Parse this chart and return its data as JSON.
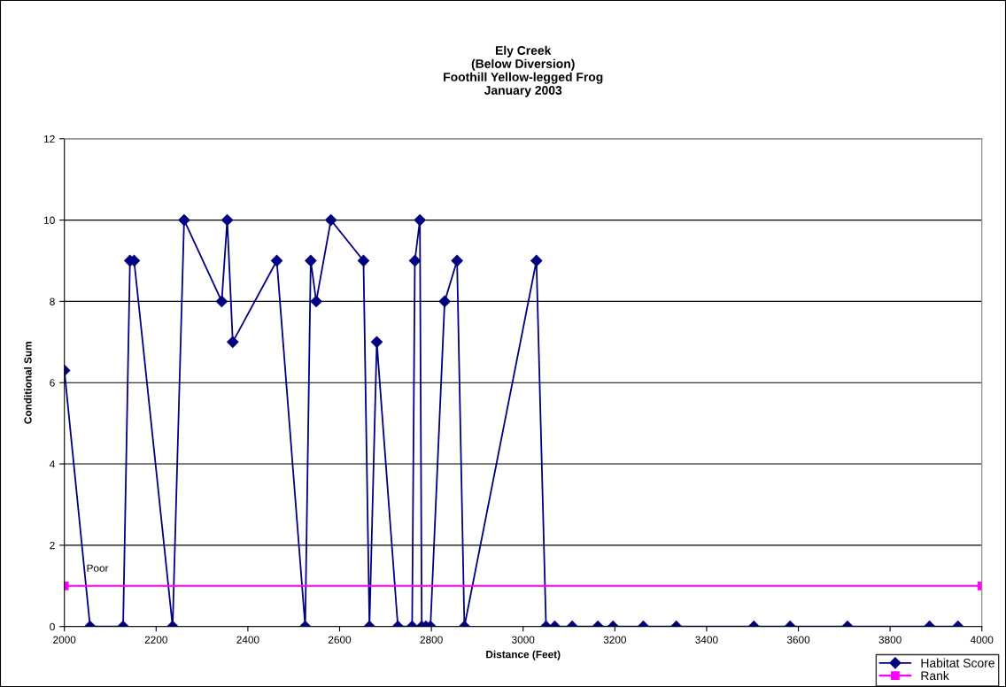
{
  "chart_data": {
    "type": "line",
    "title": "Ely Creek\n(Below Diversion)\nFoothill Yellow-legged Frog\nJanuary 2003",
    "xlabel": "Distance (Feet)",
    "ylabel": "Conditional Sum",
    "xlim": [
      2000,
      4000
    ],
    "xticks": [
      2000,
      2200,
      2400,
      2600,
      2800,
      3000,
      3200,
      3400,
      3600,
      3800,
      4000
    ],
    "ylim": [
      0,
      12
    ],
    "yticks": [
      0,
      2,
      4,
      6,
      8,
      10,
      12
    ],
    "grid": "y",
    "legend": "bottom right",
    "line_style": "solid",
    "annotations": [
      "Poor"
    ],
    "series": [
      {
        "name": "Habitat Score",
        "color": "#000080",
        "marker": "diamond",
        "x": [
          2000,
          2056,
          2128,
          2143,
          2152,
          2236,
          2261,
          2343,
          2355,
          2367,
          2463,
          2525,
          2537,
          2549,
          2581,
          2652,
          2665,
          2681,
          2727,
          2758,
          2764,
          2775,
          2779,
          2788,
          2798,
          2829,
          2856,
          2872,
          3029,
          3050,
          3069,
          3107,
          3163,
          3196,
          3262,
          3334,
          3503,
          3582,
          3707,
          3886,
          3948
        ],
        "values": [
          6.3,
          0,
          0,
          9,
          9,
          0,
          10,
          8,
          10,
          7,
          9,
          0,
          9,
          8,
          10,
          9,
          0,
          7,
          0,
          0,
          9,
          10,
          0,
          0,
          0,
          8,
          9,
          0,
          9,
          0,
          0,
          0,
          0,
          0,
          0,
          0,
          0,
          0,
          0,
          0,
          0
        ]
      },
      {
        "name": "Rank",
        "color": "#ff00ff",
        "marker": "square",
        "x": [
          2000,
          4000
        ],
        "values": [
          1,
          1
        ]
      }
    ]
  }
}
